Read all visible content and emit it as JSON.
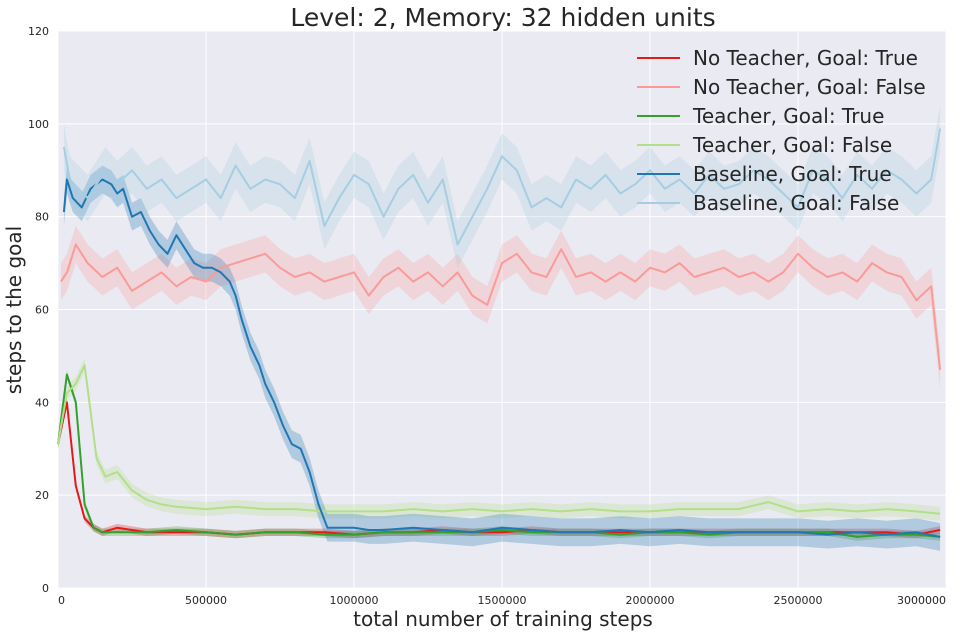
{
  "colors": {
    "background": "#eaeaf2",
    "grid": "#ffffff",
    "no_teacher_true": "#e31a1c",
    "no_teacher_false": "#fb9a99",
    "teacher_true": "#33a02c",
    "teacher_false": "#b2df8a",
    "baseline_true": "#1f78b4",
    "baseline_false": "#a6cee3"
  },
  "chart_data": {
    "type": "line",
    "title": "Level: 2, Memory: 32 hidden units",
    "xlabel": "total number of training steps",
    "ylabel": "steps to the goal",
    "xlim": [
      0,
      3000000
    ],
    "ylim": [
      0,
      120
    ],
    "xticks": [
      "0",
      "500000",
      "1000000",
      "1500000",
      "2000000",
      "2500000",
      "3000000"
    ],
    "yticks": [
      "0",
      "20",
      "40",
      "60",
      "80",
      "100",
      "120"
    ],
    "grid": true,
    "legend_position": "top-right",
    "series": [
      {
        "name": "No Teacher, Goal: True",
        "color": "#e31a1c",
        "band": 0.8,
        "x": [
          0,
          30000,
          60000,
          90000,
          120000,
          150000,
          200000,
          300000,
          400000,
          500000,
          600000,
          700000,
          800000,
          900000,
          1000000,
          1100000,
          1200000,
          1300000,
          1400000,
          1500000,
          1600000,
          1700000,
          1800000,
          1900000,
          2000000,
          2100000,
          2200000,
          2300000,
          2400000,
          2500000,
          2600000,
          2700000,
          2800000,
          2900000,
          2980000
        ],
        "y": [
          31,
          40,
          22,
          15,
          13,
          12,
          13,
          12,
          12,
          12,
          11.5,
          12,
          12,
          12,
          11.5,
          12,
          12,
          12.5,
          12,
          12,
          12.5,
          12,
          12,
          12,
          12,
          12,
          12,
          12,
          12,
          12,
          12,
          12,
          12,
          11.5,
          12.5
        ]
      },
      {
        "name": "No Teacher, Goal: False",
        "color": "#fb9a99",
        "band": 4,
        "x": [
          10000,
          30000,
          60000,
          100000,
          150000,
          200000,
          250000,
          300000,
          350000,
          400000,
          450000,
          500000,
          550000,
          600000,
          650000,
          700000,
          750000,
          800000,
          850000,
          900000,
          950000,
          1000000,
          1050000,
          1100000,
          1150000,
          1200000,
          1250000,
          1300000,
          1350000,
          1400000,
          1450000,
          1500000,
          1550000,
          1600000,
          1650000,
          1700000,
          1750000,
          1800000,
          1850000,
          1900000,
          1950000,
          2000000,
          2050000,
          2100000,
          2150000,
          2200000,
          2250000,
          2300000,
          2350000,
          2400000,
          2450000,
          2500000,
          2550000,
          2600000,
          2650000,
          2700000,
          2750000,
          2800000,
          2850000,
          2900000,
          2950000,
          2980000
        ],
        "y": [
          66,
          68,
          74,
          70,
          67,
          69,
          64,
          66,
          68,
          65,
          67,
          66,
          69,
          70,
          71,
          72,
          69,
          67,
          68,
          66,
          67,
          68,
          63,
          67,
          69,
          66,
          68,
          65,
          68,
          63,
          61,
          70,
          72,
          68,
          67,
          73,
          67,
          68,
          66,
          68,
          66,
          69,
          68,
          70,
          67,
          68,
          69,
          67,
          68,
          66,
          68,
          72,
          69,
          67,
          68,
          66,
          70,
          68,
          67,
          62,
          65,
          47
        ]
      },
      {
        "name": "Teacher, Goal: True",
        "color": "#33a02c",
        "band": 0.8,
        "x": [
          0,
          30000,
          60000,
          90000,
          120000,
          150000,
          200000,
          300000,
          400000,
          500000,
          600000,
          700000,
          800000,
          900000,
          1000000,
          1100000,
          1200000,
          1300000,
          1400000,
          1500000,
          1600000,
          1700000,
          1800000,
          1900000,
          2000000,
          2100000,
          2200000,
          2300000,
          2400000,
          2500000,
          2600000,
          2700000,
          2800000,
          2900000,
          2980000
        ],
        "y": [
          31,
          46,
          40,
          18,
          13,
          12,
          12,
          12,
          12.5,
          12,
          11.5,
          12,
          12,
          11.5,
          11.5,
          12,
          12,
          12,
          12,
          12.5,
          12,
          12,
          12,
          11.5,
          12,
          12,
          11.5,
          12,
          12,
          12,
          12,
          11,
          11.5,
          11.5,
          11
        ]
      },
      {
        "name": "Teacher, Goal: False",
        "color": "#b2df8a",
        "band": 1.5,
        "x": [
          0,
          30000,
          60000,
          90000,
          110000,
          130000,
          160000,
          200000,
          250000,
          300000,
          350000,
          400000,
          500000,
          600000,
          700000,
          800000,
          900000,
          1000000,
          1100000,
          1200000,
          1300000,
          1400000,
          1500000,
          1600000,
          1700000,
          1800000,
          1900000,
          2000000,
          2100000,
          2200000,
          2300000,
          2400000,
          2500000,
          2600000,
          2700000,
          2800000,
          2900000,
          2980000
        ],
        "y": [
          31,
          42,
          44,
          48,
          38,
          28,
          24,
          25,
          21,
          19,
          18,
          17.5,
          17,
          17.5,
          17,
          17,
          16.5,
          16.5,
          16.5,
          17,
          16.5,
          17,
          16.5,
          17,
          16.5,
          17,
          16.5,
          16.5,
          17,
          17,
          17,
          18.5,
          16.5,
          17,
          16.5,
          17,
          16.5,
          16
        ]
      },
      {
        "name": "Baseline, Goal: True",
        "color": "#1f78b4",
        "band": 3,
        "x": [
          20000,
          30000,
          50000,
          80000,
          110000,
          150000,
          180000,
          200000,
          220000,
          250000,
          280000,
          310000,
          340000,
          370000,
          400000,
          430000,
          460000,
          490000,
          520000,
          550000,
          580000,
          600000,
          620000,
          650000,
          680000,
          700000,
          730000,
          760000,
          790000,
          820000,
          850000,
          880000,
          910000,
          950000,
          1000000,
          1050000,
          1100000,
          1200000,
          1300000,
          1400000,
          1500000,
          1600000,
          1700000,
          1800000,
          1900000,
          2000000,
          2100000,
          2200000,
          2300000,
          2400000,
          2500000,
          2600000,
          2700000,
          2800000,
          2900000,
          2980000
        ],
        "y": [
          81,
          88,
          84,
          82,
          86,
          88,
          87,
          85,
          86,
          80,
          81,
          77,
          74,
          72,
          76,
          73,
          70,
          69,
          69,
          68,
          66,
          63,
          58,
          52,
          48,
          44,
          40,
          35,
          31,
          30,
          25,
          18,
          13,
          13,
          13,
          12.5,
          12.5,
          13,
          12.5,
          12,
          13,
          12.5,
          12,
          12,
          12.5,
          12,
          12.5,
          12,
          12,
          12,
          12,
          11.5,
          12,
          11.5,
          12,
          11
        ]
      },
      {
        "name": "Baseline, Goal: False",
        "color": "#a6cee3",
        "band": 5,
        "x": [
          20000,
          40000,
          70000,
          100000,
          130000,
          160000,
          200000,
          250000,
          300000,
          350000,
          400000,
          450000,
          500000,
          550000,
          600000,
          650000,
          700000,
          750000,
          800000,
          850000,
          900000,
          950000,
          1000000,
          1050000,
          1100000,
          1150000,
          1200000,
          1250000,
          1300000,
          1350000,
          1400000,
          1450000,
          1500000,
          1550000,
          1600000,
          1650000,
          1700000,
          1750000,
          1800000,
          1850000,
          1900000,
          1950000,
          2000000,
          2050000,
          2100000,
          2150000,
          2200000,
          2250000,
          2300000,
          2350000,
          2400000,
          2450000,
          2500000,
          2550000,
          2600000,
          2650000,
          2700000,
          2750000,
          2800000,
          2850000,
          2900000,
          2950000,
          2980000
        ],
        "y": [
          95,
          88,
          86,
          84,
          87,
          90,
          87,
          90,
          86,
          88,
          84,
          86,
          88,
          84,
          91,
          86,
          88,
          87,
          84,
          92,
          78,
          84,
          89,
          87,
          80,
          86,
          89,
          83,
          88,
          74,
          80,
          86,
          93,
          90,
          82,
          84,
          82,
          88,
          86,
          89,
          85,
          87,
          90,
          86,
          88,
          85,
          89,
          86,
          87,
          90,
          88,
          85,
          82,
          90,
          88,
          84,
          89,
          86,
          90,
          88,
          85,
          88,
          99
        ]
      }
    ]
  }
}
